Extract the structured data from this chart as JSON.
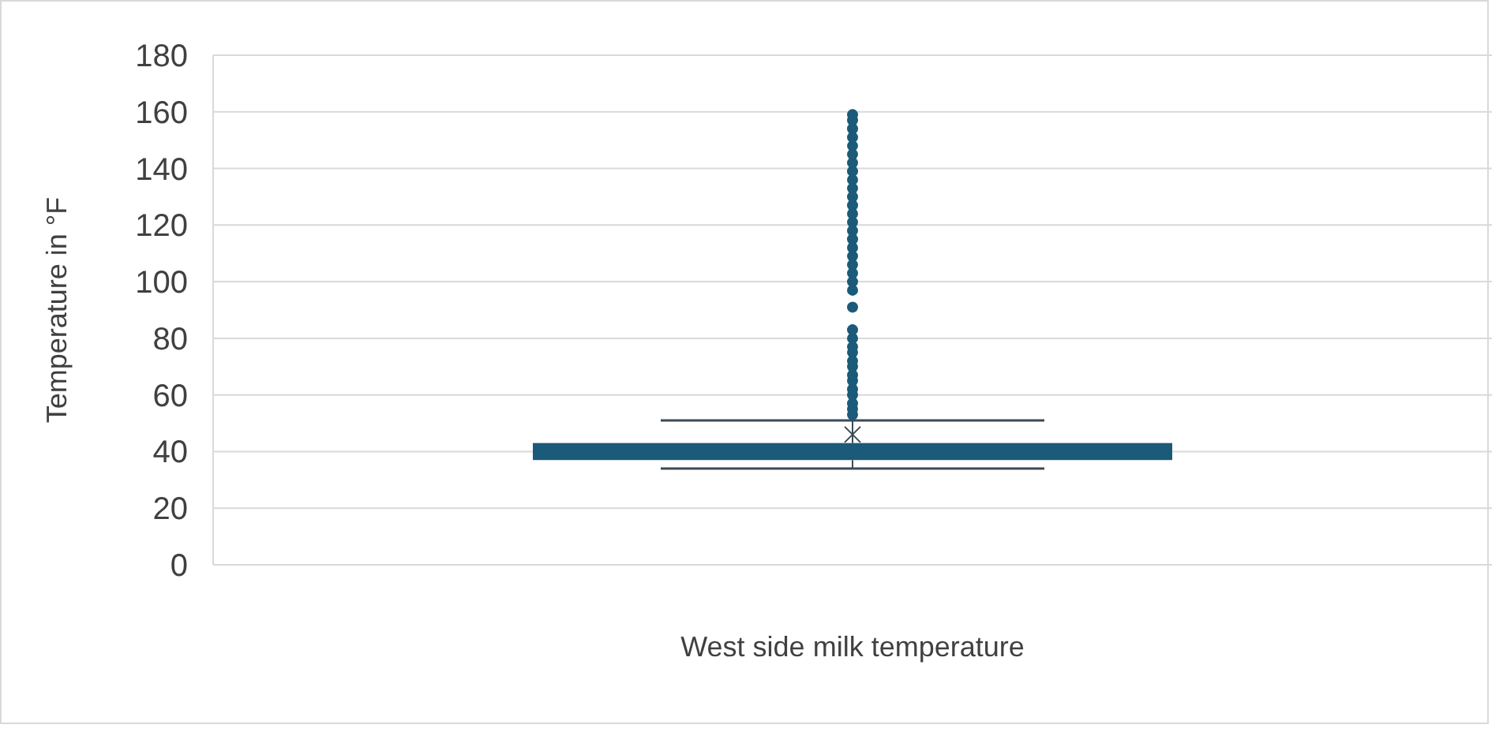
{
  "chart_data": {
    "type": "box",
    "xlabel": "West side milk temperature",
    "ylabel": "Temperature in °F",
    "categories": [
      null
    ],
    "color": "#1b5a78",
    "boxes": [
      {
        "low": 34,
        "q1": 37,
        "median": 40,
        "q3": 43,
        "high": 51,
        "mean": 46,
        "outliers": [
          53,
          55,
          57,
          60,
          62,
          65,
          67,
          70,
          72,
          75,
          77,
          80,
          83,
          91,
          97,
          100,
          103,
          106,
          109,
          112,
          115,
          118,
          121,
          124,
          127,
          130,
          133,
          136,
          139,
          142,
          145,
          148,
          151,
          154,
          157,
          159
        ]
      }
    ],
    "ylim": [
      0,
      180
    ],
    "yticks": [
      0,
      20,
      40,
      60,
      80,
      100,
      120,
      140,
      160,
      180
    ],
    "grid": "y"
  }
}
